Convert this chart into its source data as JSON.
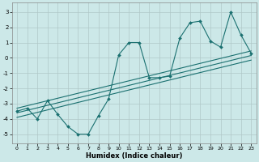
{
  "xlabel": "Humidex (Indice chaleur)",
  "bg_color": "#cce8e8",
  "grid_color": "#b0c8c8",
  "line_color": "#1a7070",
  "xlim": [
    -0.5,
    23.5
  ],
  "ylim": [
    -5.6,
    3.6
  ],
  "xticks": [
    0,
    1,
    2,
    3,
    4,
    5,
    6,
    7,
    8,
    9,
    10,
    11,
    12,
    13,
    14,
    15,
    16,
    17,
    18,
    19,
    20,
    21,
    22,
    23
  ],
  "yticks": [
    -5,
    -4,
    -3,
    -2,
    -1,
    0,
    1,
    2,
    3
  ],
  "zigzag_x": [
    0,
    1,
    2,
    3,
    4,
    5,
    6,
    7,
    8,
    9,
    10,
    11,
    12,
    13,
    14,
    15,
    16,
    17,
    18,
    19,
    20,
    21,
    22,
    23
  ],
  "zigzag_y": [
    -3.5,
    -3.3,
    -4.0,
    -2.8,
    -3.7,
    -4.5,
    -5.0,
    -5.0,
    -3.8,
    -2.7,
    0.2,
    1.0,
    1.0,
    -1.3,
    -1.3,
    -1.2,
    1.3,
    2.3,
    2.4,
    1.1,
    0.7,
    3.0,
    1.5,
    0.3
  ],
  "line1_x": [
    0,
    23
  ],
  "line1_y": [
    -3.6,
    0.15
  ],
  "line2_x": [
    0,
    23
  ],
  "line2_y": [
    -3.3,
    0.45
  ],
  "line3_x": [
    0,
    23
  ],
  "line3_y": [
    -3.9,
    -0.15
  ]
}
